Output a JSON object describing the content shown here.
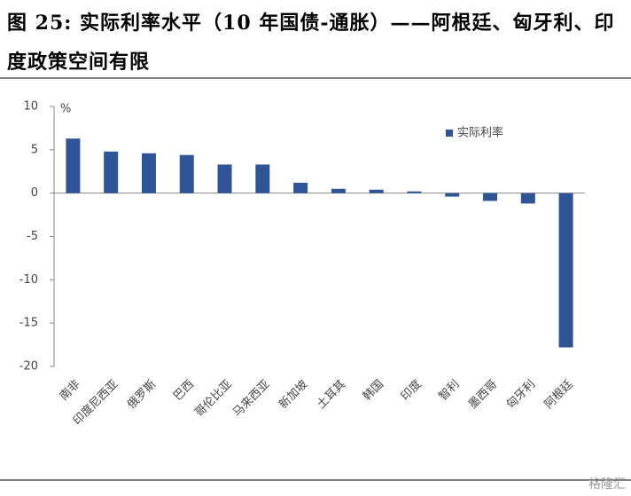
{
  "chart_data": {
    "type": "bar",
    "title": "图 25: 实际利率水平（10 年国债-通胀）——阿根廷、匈牙利、印度政策空间有限",
    "y_unit": "%",
    "watermark": "格隆汇",
    "categories": [
      "南非",
      "印度尼西亚",
      "俄罗斯",
      "巴西",
      "哥伦比亚",
      "马来西亚",
      "新加坡",
      "土耳其",
      "韩国",
      "印度",
      "智利",
      "墨西哥",
      "匈牙利",
      "阿根廷"
    ],
    "series": [
      {
        "name": "实际利率",
        "color": "#2f5597",
        "values": [
          6.3,
          4.8,
          4.6,
          4.4,
          3.3,
          3.3,
          1.2,
          0.5,
          0.4,
          0.2,
          -0.4,
          -0.9,
          -1.2,
          -17.8
        ]
      }
    ],
    "ylim": [
      -20,
      10
    ],
    "yticks": [
      10,
      5,
      0,
      -5,
      -10,
      -15,
      -20
    ],
    "legend": "top-right"
  }
}
